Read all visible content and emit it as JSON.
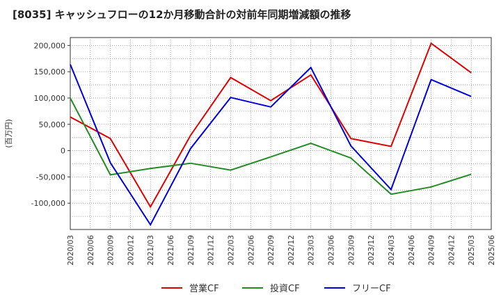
{
  "chart_data": {
    "type": "line",
    "title": "[8035]  キャッシュフローの12か月移動合計の対前年同期増減額の推移",
    "ylabel": "(百万円)",
    "xlabel": "",
    "x": [
      "2020/03",
      "2020/06",
      "2020/09",
      "2020/12",
      "2021/03",
      "2021/06",
      "2021/09",
      "2021/12",
      "2022/03",
      "2022/06",
      "2022/09",
      "2022/12",
      "2023/03",
      "2023/06",
      "2023/09",
      "2023/12",
      "2024/03",
      "2024/06",
      "2024/09",
      "2024/12",
      "2025/03",
      "2025/06"
    ],
    "ylim": [
      -150000,
      215000
    ],
    "yticks": [
      -100000,
      -50000,
      0,
      50000,
      100000,
      150000,
      200000
    ],
    "ytick_labels": [
      "-100,000",
      "-50,000",
      "0",
      "50,000",
      "100,000",
      "150,000",
      "200,000"
    ],
    "grid": true,
    "legend_position": "bottom",
    "series": [
      {
        "name": "営業CF",
        "color": "#e00000",
        "points": [
          [
            "2020/03",
            64000
          ],
          [
            "2020/09",
            23000
          ],
          [
            "2021/03",
            -107000
          ],
          [
            "2021/09",
            29000
          ],
          [
            "2022/03",
            139000
          ],
          [
            "2022/09",
            95000
          ],
          [
            "2023/03",
            144000
          ],
          [
            "2023/09",
            23000
          ],
          [
            "2024/03",
            8000
          ],
          [
            "2024/09",
            204000
          ],
          [
            "2025/03",
            148000
          ]
        ]
      },
      {
        "name": "投資CF",
        "color": "#228b22",
        "points": [
          [
            "2020/03",
            100000
          ],
          [
            "2020/09",
            -46000
          ],
          [
            "2021/03",
            -34000
          ],
          [
            "2021/09",
            -24000
          ],
          [
            "2022/03",
            -37000
          ],
          [
            "2022/09",
            -12000
          ],
          [
            "2023/03",
            14000
          ],
          [
            "2023/09",
            -14000
          ],
          [
            "2024/03",
            -83000
          ],
          [
            "2024/09",
            -69000
          ],
          [
            "2025/03",
            -45000
          ]
        ]
      },
      {
        "name": "フリーCF",
        "color": "#0000dd",
        "points": [
          [
            "2020/03",
            164000
          ],
          [
            "2020/09",
            -23000
          ],
          [
            "2021/03",
            -141000
          ],
          [
            "2021/09",
            4000
          ],
          [
            "2022/03",
            101000
          ],
          [
            "2022/09",
            83000
          ],
          [
            "2023/03",
            158000
          ],
          [
            "2023/09",
            9000
          ],
          [
            "2024/03",
            -74000
          ],
          [
            "2024/09",
            135000
          ],
          [
            "2025/03",
            103000
          ]
        ]
      }
    ]
  }
}
